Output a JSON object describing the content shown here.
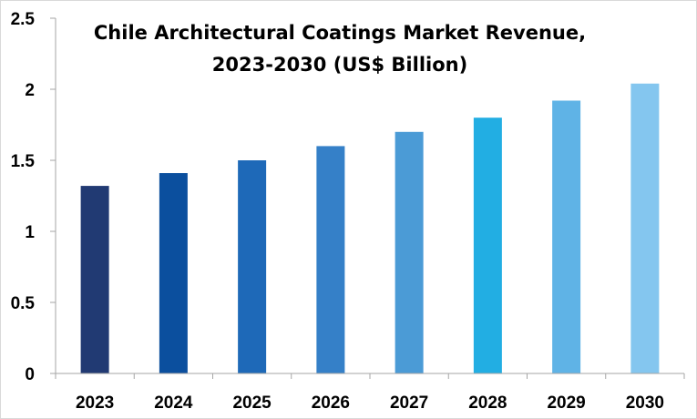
{
  "chart_data": {
    "type": "bar",
    "title_lines": [
      "Chile Architectural Coatings Market Revenue,",
      "2023-2030 (US$ Billion)"
    ],
    "xlabel": "",
    "ylabel": "",
    "categories": [
      "2023",
      "2024",
      "2025",
      "2026",
      "2027",
      "2028",
      "2029",
      "2030"
    ],
    "values": [
      1.32,
      1.41,
      1.5,
      1.6,
      1.7,
      1.8,
      1.92,
      2.04
    ],
    "ylim": [
      0,
      2.5
    ],
    "yticks": [
      "0",
      "0.5",
      "1",
      "1.5",
      "2",
      "2.5"
    ],
    "ytick_values": [
      0,
      0.5,
      1,
      1.5,
      2,
      2.5
    ],
    "bar_colors": [
      "#213a73",
      "#0b4f9e",
      "#1e69b8",
      "#3580c8",
      "#4b9bd6",
      "#22aee3",
      "#5fb3e6",
      "#84c6ef"
    ],
    "grid": false,
    "legend": "none"
  }
}
